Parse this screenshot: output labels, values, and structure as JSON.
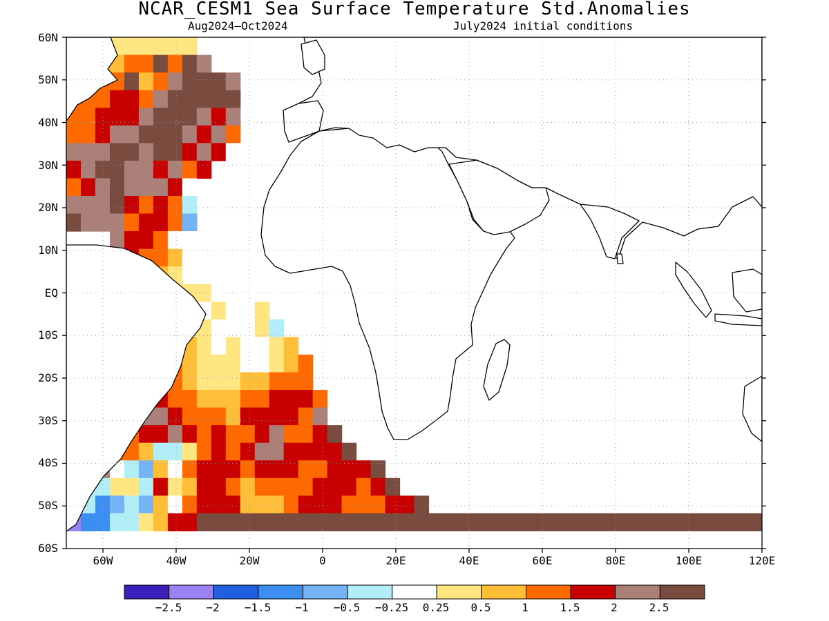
{
  "title": "NCAR_CESM1 Sea Surface Temperature Std.Anomalies",
  "subtitle_left": "Aug2024–Oct2024",
  "subtitle_right": "July2024 initial conditions",
  "lat_labels": [
    "60N",
    "50N",
    "40N",
    "30N",
    "20N",
    "10N",
    "EQ",
    "10S",
    "20S",
    "30S",
    "40S",
    "50S",
    "60S"
  ],
  "lon_labels": [
    "60W",
    "40W",
    "20W",
    "0",
    "20E",
    "40E",
    "60E",
    "80E",
    "100E",
    "120E"
  ],
  "colorbar": {
    "colors": [
      "#3a1fb8",
      "#9a82f2",
      "#1f5fe0",
      "#3c8ff0",
      "#74b4f6",
      "#b2eef8",
      "#ffffff",
      "#ffe680",
      "#ffbe38",
      "#ff6a00",
      "#c80000",
      "#aa8078",
      "#7a4c40"
    ],
    "labels": [
      "−2.5",
      "−2",
      "−1.5",
      "−1",
      "−0.5",
      "−0.25",
      "0.25",
      "0.5",
      "1",
      "1.5",
      "2",
      "2.5"
    ]
  },
  "map_grid": {
    "lon_min": -70,
    "lon_max": 120,
    "lat_min": -60,
    "lat_max": 60,
    "rows": [
      "D77777777DDDDDDDDDDDDDDDDDDDDDDDDDDDDDDDDDDDDDDD",
      "888899C9CBDDDDDDDDDDDDDDDDDDDDDDDDDDDDDDDDDDDDDD",
      "3899C89BCCCBDDDDDDDDDDDDDDDDDDDDDDDDDDDDDDDDDDDD",
      "999AA9BCCCCCDDDDDDDDDDDDDDDDDDDDDDDDDDDDDDDDDDDD",
      "99AAABCCCBABDDDDDDDDDDDDDDDDDDDDDDDDDDDDDDDDDDDD",
      "99ABBCCCBAB9DDDDDDDDDDDDDDDDDDDDDDDDDDDDDDDDDDDD",
      "BBBCCBCCABA6DDDDDDDDDDDDDDDDDDDDDDDDDDDDDDDDDDDD",
      "ABCCBBAB9ADDDDDDDDDDDDDDDDDDDDDDDDDDDDDDDDDDDDDD",
      "9ABCBBBA6DDDDDDDDDDDDDDDDDDDDDDDDDDDDDDDDDDDDDDD",
      "BBBCA9A95DDDDDDDDDDDDDDDDDDDDDDDDDDDDDDDDDDDDDDD",
      "CBBB9AA94DDDDDDDDDDDDDDDDDDDDDDDDDDDDDDDDDDDDDDD",
      "DDDBAA966DDDDDDDDDDDDDDDDDDDDDDDDDDDDDDDDDDDDDDD",
      "DDDAA9986DDDDDDDDDDDDDDDDDDDDDDDDDDDDDDDDDDDDDDD",
      "DDDDD98766DDDDDDDDDDDDDDDDDDDDDDDDDDDDDDDDDDDDDD",
      "DDDDDDB77766DDDDDDDDDDDDDDDDDDDDDDDDDDDDDDDDDDDD",
      "DDDDDDC9767667DDDDDDDDDDDDDDDDDDDDDDDDDDDDDDDDDD",
      "DDDDDD987766675DDDDDDDDDDDDDDDDDDDDDDDDDDDDDDDDD",
      "DDDDDD9987676678DDDDDDDDDDDDDDDDDDDDDDDDDDDDDDDD",
      "DDDDDC99877766789DDDDDDDDDDDDDDDDDDDDDDDDDDDDDDD",
      "DDDDDB99877788999DDDDDDDDDDDDDDDDDDDDDDDDDDDDDDD",
      "DDDDC9A9988899AAA9DDDDDDDDDDDDDDDDDDDDDDDDDDDDDD",
      "DDDDCBBA9998AAAA9BDDDDDDDDDDDDDDDDDDDDDDDDDDDDDD",
      "DDDD9AABA9A99AB99ACDDDDDDDDDDDDDDDDDDDDDDDDDDDDD",
      "DDD9985579A9ABBAAAACDDDDDDDDDDDDDDDDDDDDDDDDDDDD",
      "DDB654869AAA9AAA99AAACDDDDDDDDDDDDDDDDDDDDDDDDDD",
      "D55775A78AA989999AAA9ACDDDDDDDDDDDDDDDDDDDDDDDDD",
      "453454869AAA8889AAA999AACDDDDDDDDDDDDDDDDDDDDDDD",
      "1335578AACCCCCCCCCCCCCCCCCCCCCCCCCCCCCCCCCCCCCCC",
      "DDDDDDDDDDDDDDDDDDDDDDDDDDDDDDDDDDDDDDDDDDDDDDDD"
    ]
  }
}
